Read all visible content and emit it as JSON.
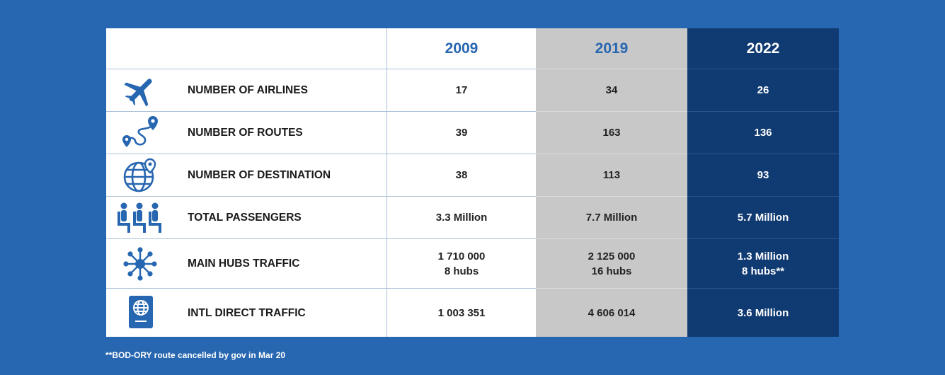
{
  "header": {
    "year_2009": "2009",
    "year_2019": "2019",
    "year_2022": "2022"
  },
  "rows": [
    {
      "icon": "airplane-icon",
      "label": "NUMBER OF AIRLINES",
      "v2009": [
        "17"
      ],
      "v2019": [
        "34"
      ],
      "v2022": [
        "26"
      ]
    },
    {
      "icon": "route-icon",
      "label": "NUMBER OF ROUTES",
      "v2009": [
        "39"
      ],
      "v2019": [
        "163"
      ],
      "v2022": [
        "136"
      ]
    },
    {
      "icon": "globe-pin-icon",
      "label": "NUMBER OF DESTINATION",
      "v2009": [
        "38"
      ],
      "v2019": [
        "113"
      ],
      "v2022": [
        "93"
      ]
    },
    {
      "icon": "passengers-icon",
      "label": "TOTAL PASSENGERS",
      "v2009": [
        "3.3 Million"
      ],
      "v2019": [
        "7.7 Million"
      ],
      "v2022": [
        "5.7 Million"
      ]
    },
    {
      "icon": "hub-network-icon",
      "label": "MAIN HUBS TRAFFIC",
      "v2009": [
        "1 710 000",
        "8 hubs"
      ],
      "v2019": [
        "2 125 000",
        "16 hubs"
      ],
      "v2022": [
        "1.3 Million",
        "8 hubs**"
      ]
    },
    {
      "icon": "passport-icon",
      "label": "INTL DIRECT TRAFFIC",
      "v2009": [
        "1 003 351"
      ],
      "v2019": [
        "4 606 014"
      ],
      "v2022": [
        "3.6 Million"
      ]
    }
  ],
  "footnote": "**BOD-ORY route cancelled by gov in Mar 20",
  "colors": {
    "background": "#2766b0",
    "col_2019": "#c8c8c8",
    "col_2022": "#103a72",
    "icon": "#2766b0"
  }
}
